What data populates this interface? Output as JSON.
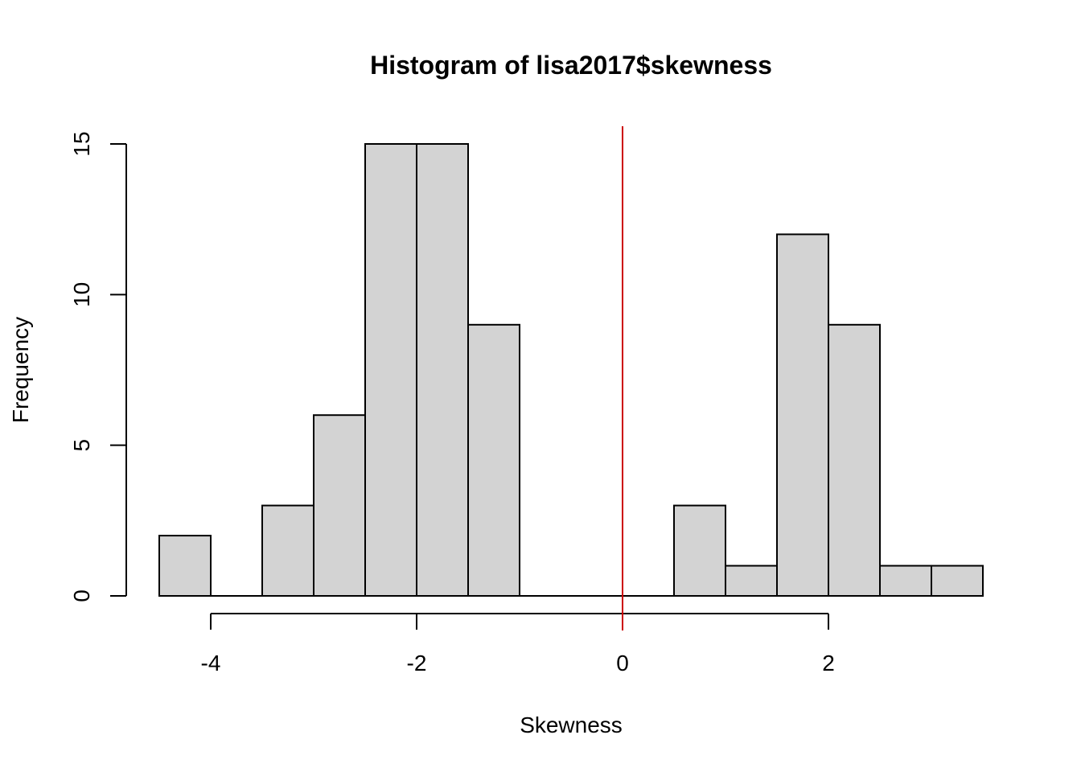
{
  "chart_data": {
    "type": "bar",
    "title": "Histogram of lisa2017$skewness",
    "xlabel": "Skewness",
    "ylabel": "Frequency",
    "bin_edges": [
      -4.5,
      -4.0,
      -3.5,
      -3.0,
      -2.5,
      -2.0,
      -1.5,
      -1.0,
      -0.5,
      0.0,
      0.5,
      1.0,
      1.5,
      2.0,
      2.5,
      3.0,
      3.5
    ],
    "values": [
      2,
      0,
      3,
      6,
      15,
      15,
      9,
      0,
      0,
      0,
      3,
      1,
      12,
      9,
      1,
      1
    ],
    "xlim": [
      -4.5,
      3.5
    ],
    "ylim": [
      0,
      15
    ],
    "x_ticks": [
      -4,
      -2,
      0,
      2
    ],
    "x_tick_labels": [
      "-4",
      "-2",
      "0",
      "2"
    ],
    "y_ticks": [
      0,
      5,
      10,
      15
    ],
    "y_tick_labels": [
      "0",
      "5",
      "10",
      "15"
    ],
    "reference_line": {
      "x": 0,
      "color": "#cc0000"
    },
    "bar_color": "#d3d3d3",
    "grid": false
  }
}
